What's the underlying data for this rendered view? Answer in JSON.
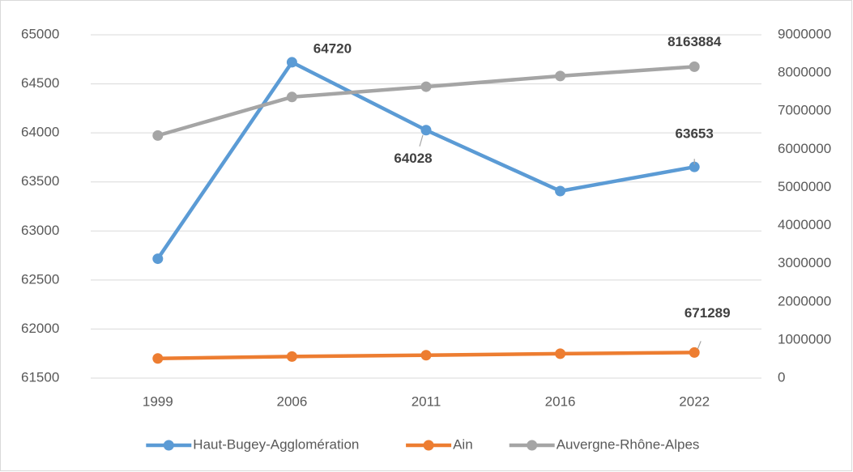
{
  "chart_data": {
    "type": "line",
    "categories": [
      "1999",
      "2006",
      "2011",
      "2016",
      "2022"
    ],
    "series": [
      {
        "name": "Haut-Bugey-Agglomération",
        "color": "#5b9bd5",
        "values": [
          62717,
          64720,
          64028,
          63407,
          63653
        ],
        "value_labels": [
          null,
          "64720",
          "64028",
          null,
          "63653"
        ]
      },
      {
        "name": "Ain",
        "color": "#ed7d31",
        "axis": "y2",
        "values": [
          515000,
          565000,
          600000,
          640000,
          671289
        ],
        "value_labels": [
          null,
          null,
          null,
          null,
          "671289"
        ]
      },
      {
        "name": "Auvergne-Rhône-Alpes",
        "color": "#a5a5a5",
        "axis": "y2",
        "values": [
          6360000,
          7370000,
          7640000,
          7920000,
          8163884
        ],
        "value_labels": [
          null,
          null,
          null,
          null,
          "8163884"
        ]
      }
    ],
    "ylim": [
      61500,
      65000
    ],
    "yticks": [
      61500,
      62000,
      62500,
      63000,
      63500,
      64000,
      64500,
      65000
    ],
    "y2lim": [
      0,
      9000000
    ],
    "y2ticks": [
      0,
      1000000,
      2000000,
      3000000,
      4000000,
      5000000,
      6000000,
      7000000,
      8000000,
      9000000
    ],
    "grid": true,
    "legend": "bottom"
  }
}
